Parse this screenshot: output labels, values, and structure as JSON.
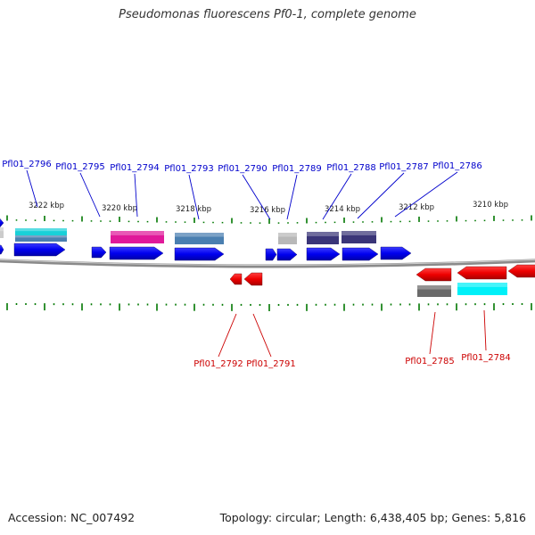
{
  "title": "Pseudomonas fluorescens Pf0-1, complete genome",
  "footer": {
    "accession": "Accession: NC_007492",
    "topology": "Topology: circular; Length: 6,438,405 bp; Genes: 5,816"
  },
  "colors": {
    "forward_label": "#0000cc",
    "reverse_label": "#cc0000",
    "tick": "#007700",
    "backbone": "#888888",
    "cds_forward": "#0000ee",
    "cds_reverse": "#ee0000"
  },
  "scale_labels": [
    {
      "text": "3222 kbp",
      "kbp": 3222
    },
    {
      "text": "3220 kbp",
      "kbp": 3220
    },
    {
      "text": "3218 kbp",
      "kbp": 3218
    },
    {
      "text": "3216 kbp",
      "kbp": 3216
    },
    {
      "text": "3214 kbp",
      "kbp": 3214
    },
    {
      "text": "3212 kbp",
      "kbp": 3212
    },
    {
      "text": "3210 kbp",
      "kbp": 3210
    }
  ],
  "forward_labels": [
    {
      "name": "Pfl01_2796",
      "color": "#0000cc"
    },
    {
      "name": "Pfl01_2795",
      "color": "#0000cc"
    },
    {
      "name": "Pfl01_2794",
      "color": "#0000cc"
    },
    {
      "name": "Pfl01_2793",
      "color": "#0000cc"
    },
    {
      "name": "Pfl01_2790",
      "color": "#0000cc"
    },
    {
      "name": "Pfl01_2789",
      "color": "#0000cc"
    },
    {
      "name": "Pfl01_2788",
      "color": "#0000cc"
    },
    {
      "name": "Pfl01_2787",
      "color": "#0000cc"
    },
    {
      "name": "Pfl01_2786",
      "color": "#0000cc"
    }
  ],
  "reverse_labels": [
    {
      "name": "Pfl01_2792",
      "color": "#cc0000"
    },
    {
      "name": "Pfl01_2791",
      "color": "#cc0000"
    },
    {
      "name": "Pfl01_2785",
      "color": "#cc0000"
    },
    {
      "name": "Pfl01_2784",
      "color": "#cc0000"
    }
  ],
  "feature_colors": {
    "cyan": "#19d0d8",
    "steel": "#4a7fb0",
    "magenta": "#e0199a",
    "indigo": "#3a3578",
    "grey_light": "#b8b8b8",
    "grey_dark": "#6a6a6a",
    "cyan_bright": "#00f0f8"
  }
}
